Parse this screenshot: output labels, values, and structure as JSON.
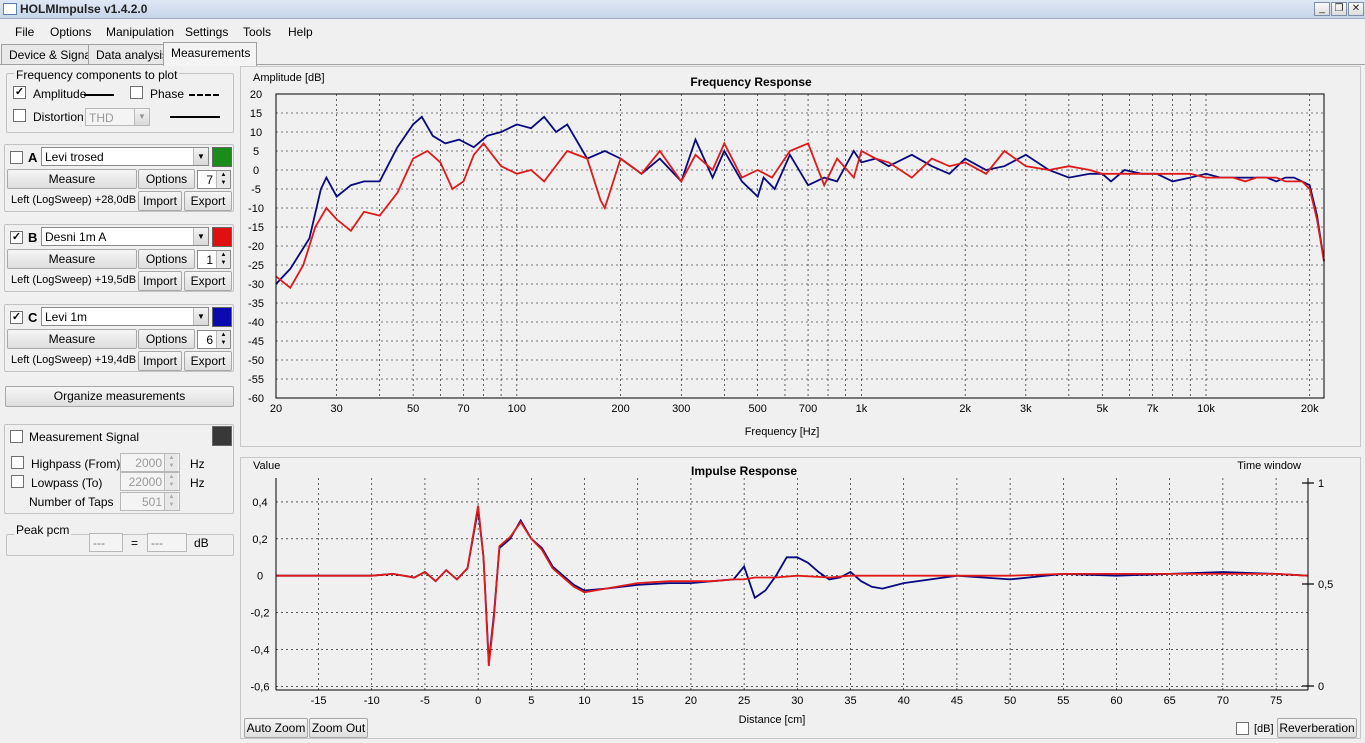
{
  "window": {
    "title": "HOLMImpulse  v1.4.2.0",
    "min_label": "_",
    "restore_label": "❐",
    "close_label": "✕"
  },
  "menu": [
    "File",
    "Options",
    "Manipulation",
    "Settings",
    "Tools",
    "Help"
  ],
  "tabs": [
    "Device & Signal",
    "Data analysis",
    "Measurements"
  ],
  "active_tab": 2,
  "components": {
    "title": "Frequency components to plot",
    "amplitude_label": "Amplitude",
    "amplitude_checked": "✓",
    "phase_label": "Phase",
    "distortion_label": "Distortion",
    "distortion_select": "THD"
  },
  "measurements": [
    {
      "letter": "A",
      "checked": "",
      "name": "Levi trosed",
      "color": "#1a8c1a",
      "measure": "Measure",
      "options": "Options",
      "spin": "7",
      "info": "Left (LogSweep) +28,0dB",
      "import": "Import",
      "export": "Export"
    },
    {
      "letter": "B",
      "checked": "✓",
      "name": "Desni 1m A",
      "color": "#e01010",
      "measure": "Measure",
      "options": "Options",
      "spin": "1",
      "info": "Left (LogSweep) +19,5dB",
      "import": "Import",
      "export": "Export"
    },
    {
      "letter": "C",
      "checked": "✓",
      "name": "Levi 1m",
      "color": "#0a0ab0",
      "measure": "Measure",
      "options": "Options",
      "spin": "6",
      "info": "Left (LogSweep) +19,4dB",
      "import": "Import",
      "export": "Export"
    }
  ],
  "organize_label": "Organize measurements",
  "signal": {
    "title": "Measurement Signal",
    "color": "#383838",
    "highpass_label": "Highpass (From)",
    "highpass_value": "2000",
    "lowpass_label": "Lowpass (To)",
    "lowpass_value": "22000",
    "taps_label": "Number of Taps",
    "taps_value": "501",
    "hz": "Hz"
  },
  "peak": {
    "title": "Peak pcm",
    "value1": "---",
    "eq": "=",
    "value2": "---",
    "db": "dB"
  },
  "arrows": {
    "up": "▲",
    "down": "▼"
  },
  "chart_data": [
    {
      "type": "line",
      "title": "Frequency Response",
      "ylabel": "Amplitude [dB]",
      "xlabel": "Frequency [Hz]",
      "xscale": "log",
      "xlim": [
        20,
        22000
      ],
      "ylim": [
        -60,
        20
      ],
      "yticks": [
        "20",
        "15",
        "10",
        "5",
        "0",
        "-5",
        "-10",
        "-15",
        "-20",
        "-25",
        "-30",
        "-35",
        "-40",
        "-45",
        "-50",
        "-55",
        "-60"
      ],
      "xticks": [
        {
          "v": 20,
          "l": "20"
        },
        {
          "v": 30,
          "l": "30"
        },
        {
          "v": 50,
          "l": "50"
        },
        {
          "v": 70,
          "l": "70"
        },
        {
          "v": 100,
          "l": "100"
        },
        {
          "v": 200,
          "l": "200"
        },
        {
          "v": 300,
          "l": "300"
        },
        {
          "v": 500,
          "l": "500"
        },
        {
          "v": 700,
          "l": "700"
        },
        {
          "v": 1000,
          "l": "1k"
        },
        {
          "v": 2000,
          "l": "2k"
        },
        {
          "v": 3000,
          "l": "3k"
        },
        {
          "v": 5000,
          "l": "5k"
        },
        {
          "v": 7000,
          "l": "7k"
        },
        {
          "v": 10000,
          "l": "10k"
        },
        {
          "v": 20000,
          "l": "20k"
        }
      ],
      "grid": true,
      "series": [
        {
          "color": "#0a0a80",
          "x": [
            20,
            22,
            25,
            27,
            28,
            30,
            33,
            36,
            40,
            45,
            50,
            53,
            57,
            62,
            68,
            75,
            82,
            90,
            100,
            110,
            120,
            130,
            140,
            160,
            180,
            200,
            230,
            260,
            300,
            330,
            370,
            400,
            450,
            500,
            520,
            560,
            620,
            700,
            780,
            850,
            950,
            1000,
            1100,
            1200,
            1400,
            1600,
            1800,
            2000,
            2300,
            2600,
            3000,
            3500,
            4000,
            4600,
            5000,
            5300,
            5800,
            6500,
            7200,
            8000,
            9000,
            10000,
            11000,
            12000,
            13000,
            14000,
            15000,
            16000,
            17000,
            18000,
            19000,
            20000,
            21000,
            22000
          ],
          "y": [
            -30,
            -26,
            -18,
            -5,
            -2,
            -7,
            -4,
            -3,
            -3,
            6,
            12,
            14,
            9,
            7,
            8,
            6,
            9,
            10,
            12,
            11,
            14,
            10,
            12,
            3,
            5,
            3,
            -1,
            3,
            -3,
            8,
            -2,
            5,
            -3,
            -7,
            -2,
            -5,
            4,
            -4,
            -2,
            -3,
            5,
            2,
            3,
            1,
            4,
            1,
            -1,
            3,
            0,
            1,
            4,
            0,
            -2,
            -1,
            -1,
            -3,
            0,
            -1,
            -1,
            -3,
            -2,
            -1,
            -2,
            -2,
            -2,
            -2,
            -2,
            -3,
            -2,
            -2,
            -3,
            -4,
            -12,
            -24
          ]
        },
        {
          "color": "#e01a1a",
          "x": [
            20,
            22,
            24,
            26,
            28,
            30,
            33,
            36,
            40,
            45,
            50,
            55,
            60,
            65,
            70,
            75,
            80,
            90,
            100,
            110,
            120,
            140,
            160,
            175,
            180,
            200,
            230,
            260,
            300,
            330,
            370,
            400,
            450,
            500,
            550,
            620,
            700,
            780,
            850,
            950,
            1000,
            1100,
            1200,
            1400,
            1600,
            1800,
            2000,
            2300,
            2600,
            3000,
            3500,
            4000,
            4600,
            5000,
            5300,
            5800,
            6500,
            7200,
            8000,
            9000,
            10000,
            11000,
            12000,
            13000,
            14000,
            15000,
            16000,
            17000,
            18000,
            19000,
            20000,
            21000,
            22000
          ],
          "y": [
            -28,
            -31,
            -25,
            -15,
            -10,
            -13,
            -16,
            -11,
            -12,
            -6,
            3,
            5,
            2,
            -5,
            -3,
            4,
            7,
            1,
            -1,
            0,
            -3,
            5,
            3,
            -8,
            -10,
            3,
            -1,
            5,
            -3,
            4,
            0,
            7,
            -2,
            0,
            -2,
            5,
            7,
            -4,
            3,
            -2,
            5,
            3,
            2,
            -2,
            3,
            1,
            2,
            -1,
            5,
            1,
            0,
            1,
            0,
            -1,
            -1,
            -1,
            -1,
            -1,
            -1,
            -1,
            -2,
            -2,
            -2,
            -3,
            -2,
            -2,
            -2,
            -3,
            -3,
            -3,
            -5,
            -13,
            -24
          ]
        }
      ]
    },
    {
      "type": "line",
      "title": "Impulse Response",
      "ylabel": "Value",
      "xlabel": "Distance [cm]",
      "y2label": "Time window",
      "xlim": [
        -19,
        78
      ],
      "ylim": [
        -0.6,
        0.5
      ],
      "yticks": [
        "0,4",
        "0,2",
        "0",
        "-0,2",
        "-0,4",
        "-0,6"
      ],
      "xticks": [
        "-15",
        "-10",
        "-5",
        "0",
        "5",
        "10",
        "15",
        "20",
        "25",
        "30",
        "35",
        "40",
        "45",
        "50",
        "55",
        "60",
        "65",
        "70",
        "75"
      ],
      "y2ticks": [
        "1",
        "0,5",
        "0"
      ],
      "grid": true,
      "series": [
        {
          "color": "#0a0a80",
          "x": [
            -19,
            -10,
            -8,
            -6,
            -5,
            -4,
            -3,
            -2,
            -1,
            0,
            0.5,
            1,
            1.5,
            2,
            3,
            4,
            5,
            6,
            7,
            9,
            10,
            12,
            15,
            18,
            20,
            22,
            24,
            25,
            26,
            27,
            28,
            29,
            30,
            31,
            32,
            33,
            34,
            35,
            36,
            37,
            38,
            40,
            45,
            50,
            55,
            60,
            65,
            70,
            75,
            78
          ],
          "y": [
            0,
            0,
            0.01,
            -0.01,
            0.02,
            -0.03,
            0.03,
            -0.02,
            0.04,
            0.36,
            0.1,
            -0.47,
            -0.2,
            0.15,
            0.2,
            0.3,
            0.2,
            0.15,
            0.05,
            -0.05,
            -0.08,
            -0.07,
            -0.05,
            -0.04,
            -0.04,
            -0.03,
            -0.02,
            0.05,
            -0.12,
            -0.08,
            0.0,
            0.1,
            0.1,
            0.07,
            0.02,
            -0.02,
            -0.01,
            0.02,
            -0.03,
            -0.06,
            -0.07,
            -0.04,
            0.0,
            -0.02,
            0.01,
            0.0,
            0.01,
            0.02,
            0.01,
            0.0
          ]
        },
        {
          "color": "#e01a1a",
          "x": [
            -19,
            -10,
            -8,
            -6,
            -5,
            -4,
            -3,
            -2,
            -1,
            0,
            0.5,
            1,
            1.5,
            2,
            3,
            4,
            5,
            6,
            7,
            9,
            10,
            12,
            15,
            18,
            20,
            22,
            24,
            25,
            26,
            28,
            30,
            33,
            35,
            40,
            45,
            50,
            55,
            60,
            65,
            70,
            75,
            78
          ],
          "y": [
            0,
            0,
            0.01,
            -0.01,
            0.02,
            -0.03,
            0.03,
            -0.02,
            0.04,
            0.38,
            0.1,
            -0.49,
            -0.22,
            0.16,
            0.21,
            0.29,
            0.2,
            0.14,
            0.04,
            -0.06,
            -0.09,
            -0.07,
            -0.04,
            -0.03,
            -0.03,
            -0.03,
            -0.02,
            -0.02,
            -0.01,
            -0.01,
            0.0,
            -0.01,
            0.0,
            0.0,
            0.0,
            0.0,
            0.01,
            0.01,
            0.01,
            0.01,
            0.01,
            0.0
          ]
        }
      ]
    }
  ],
  "bottom": {
    "auto_zoom": "Auto Zoom",
    "zoom_out": "Zoom Out",
    "db_label": "[dB]",
    "reverb_label": "Reverberation"
  }
}
